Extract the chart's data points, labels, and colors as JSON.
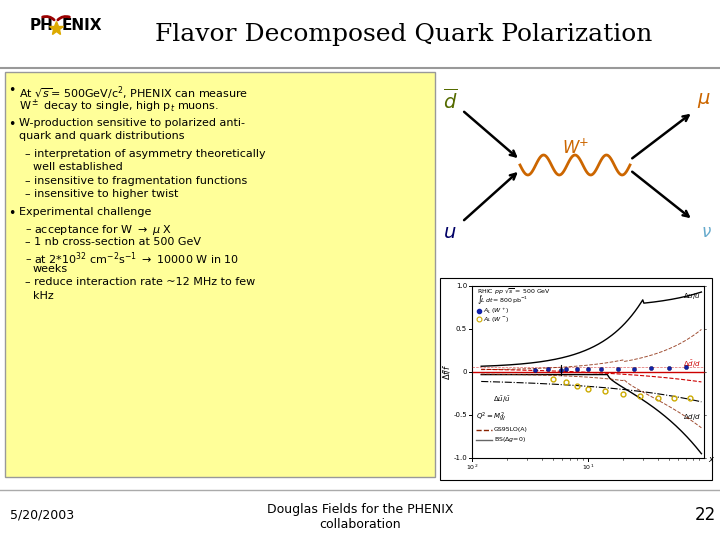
{
  "title": "Flavor Decomposed Quark Polarization",
  "background_color": "#ffffff",
  "bullet_box_color": "#ffff99",
  "bullet_box_border": "#999999",
  "title_fontsize": 18,
  "footer_date": "5/20/2003",
  "footer_text": "Douglas Fields for the PHENIX\ncollaboration",
  "footer_page": "22",
  "feynman_d_color": "#556b00",
  "feynman_W_color": "#cc6600",
  "feynman_mu_color": "#cc6600",
  "feynman_u_color": "#000066",
  "feynman_nu_color": "#66aacc"
}
